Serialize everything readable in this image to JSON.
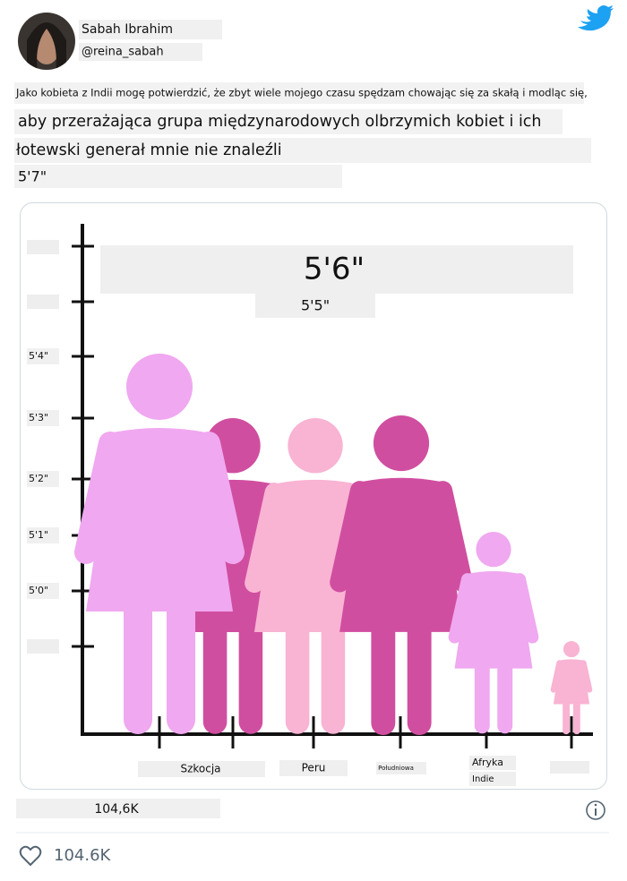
{
  "user": {
    "name": "Sabah Ibrahim",
    "handle": "@reina_sabah"
  },
  "tweet": {
    "lines": [
      "Jako kobieta z Indii mogę potwierdzić, że zbyt wiele mojego czasu spędzam chowając się za skałą i modląc się,",
      "aby przerażająca grupa międzynarodowych olbrzymich kobiet i ich",
      "łotewski generał mnie nie znaleźli",
      "5'7\""
    ]
  },
  "image": {
    "yticks": [
      "5'4\"",
      "5'3\"",
      "5'2\"",
      "5'1\"",
      "5'0\""
    ],
    "highlight": "5'6\"",
    "subhighlight": "5'5\"",
    "categories": [
      "Szkocja",
      "Peru",
      "Południowa",
      "Afryka",
      "Indie"
    ]
  },
  "stats": {
    "count_label": "104,6K",
    "likes": "104.6K"
  }
}
